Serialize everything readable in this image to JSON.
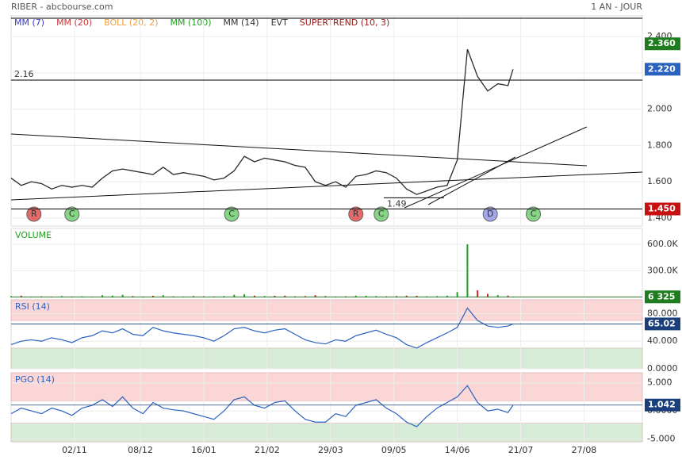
{
  "header": {
    "title": "RIBER - abcbourse.com",
    "period": "1 AN - JOUR"
  },
  "legend": [
    {
      "name": "MM (7)",
      "color": "#3a3ad0"
    },
    {
      "name": "MM (20)",
      "color": "#c83a3a"
    },
    {
      "name": "BOLL (20, 2)",
      "color": "#f0a040"
    },
    {
      "name": "MM (100)",
      "color": "#20a020"
    },
    {
      "name": "MM (14)",
      "color": "#333333"
    },
    {
      "name": "EVT",
      "color": "#333333"
    },
    {
      "name": "SUPERTREND (10, 3)",
      "color": "#a01818"
    }
  ],
  "chart_data": [
    {
      "type": "line",
      "title": "price",
      "x": [
        0,
        4,
        8,
        12,
        16,
        20,
        24,
        28,
        32,
        36,
        40,
        44,
        48,
        52,
        56,
        60,
        64,
        68,
        72,
        76,
        80,
        84,
        88,
        92,
        96,
        100,
        104,
        108,
        112,
        116,
        120,
        124,
        128,
        132,
        136,
        140,
        144,
        148,
        152,
        156,
        160,
        164,
        168,
        172,
        176,
        180,
        184,
        188,
        192,
        196,
        198
      ],
      "series": [
        {
          "name": "close",
          "color": "#2a2a2a",
          "values": [
            1.62,
            1.58,
            1.6,
            1.59,
            1.56,
            1.58,
            1.57,
            1.58,
            1.57,
            1.62,
            1.66,
            1.67,
            1.66,
            1.65,
            1.64,
            1.68,
            1.64,
            1.65,
            1.64,
            1.63,
            1.61,
            1.62,
            1.66,
            1.74,
            1.71,
            1.73,
            1.72,
            1.71,
            1.69,
            1.68,
            1.6,
            1.58,
            1.6,
            1.57,
            1.63,
            1.64,
            1.66,
            1.65,
            1.62,
            1.56,
            1.53,
            1.55,
            1.57,
            1.58,
            1.72,
            2.33,
            2.18,
            2.1,
            2.14,
            2.13,
            2.22
          ]
        }
      ],
      "xlim": [
        0,
        249
      ],
      "xticks": [
        {
          "value": 25,
          "label": "02/11"
        },
        {
          "value": 51,
          "label": "08/12"
        },
        {
          "value": 76,
          "label": "16/01"
        },
        {
          "value": 101,
          "label": "21/02"
        },
        {
          "value": 126,
          "label": "29/03"
        },
        {
          "value": 151,
          "label": "09/05"
        },
        {
          "value": 176,
          "label": "14/06"
        },
        {
          "value": 201,
          "label": "21/07"
        },
        {
          "value": 226,
          "label": "27/08"
        }
      ],
      "ylim": [
        1.356,
        2.514
      ],
      "yticks": [
        {
          "value": 1.4,
          "label": "1.400"
        },
        {
          "value": 1.6,
          "label": "1.600"
        },
        {
          "value": 1.8,
          "label": "1.800"
        },
        {
          "value": 2.0,
          "label": "2.000"
        },
        {
          "value": 2.2,
          "label": "2.200"
        },
        {
          "value": 2.4,
          "label": "2.400"
        }
      ],
      "annotations": [
        {
          "value": 2.16,
          "label": "2.16"
        },
        {
          "value": 1.49,
          "label": "1.49"
        }
      ],
      "markers": [
        {
          "value": 2.36,
          "label": "2.360",
          "color": "#1e7d1e"
        },
        {
          "value": 2.22,
          "label": "2.220",
          "color": "#2a62c0"
        },
        {
          "value": 1.45,
          "label": "1.450",
          "color": "#c81010"
        }
      ],
      "signals": [
        {
          "label": "R",
          "x": 9,
          "color": "#e46a6a"
        },
        {
          "label": "C",
          "x": 24,
          "color": "#86d486"
        },
        {
          "label": "C",
          "x": 87,
          "color": "#86d486"
        },
        {
          "label": "R",
          "x": 136,
          "color": "#e46a6a"
        },
        {
          "label": "C",
          "x": 146,
          "color": "#86d486"
        },
        {
          "label": "D",
          "x": 189,
          "color": "#a4a8e8"
        },
        {
          "label": "C",
          "x": 206,
          "color": "#86d486"
        }
      ]
    },
    {
      "type": "bar",
      "title": "VOLUME",
      "color": "#20a020",
      "values": [
        15000,
        20000,
        10000,
        12000,
        8000,
        15000,
        10000,
        12000,
        9000,
        25000,
        20000,
        30000,
        15000,
        10000,
        18000,
        25000,
        12000,
        10000,
        15000,
        12000,
        10000,
        15000,
        30000,
        35000,
        20000,
        15000,
        18000,
        20000,
        12000,
        15000,
        25000,
        15000,
        10000,
        12000,
        20000,
        18000,
        15000,
        12000,
        15000,
        20000,
        18000,
        12000,
        15000,
        20000,
        60000,
        600000,
        80000,
        40000,
        25000,
        20000,
        6325
      ],
      "ylim": [
        0,
        780000
      ],
      "yticks": [
        {
          "value": 300000,
          "label": "300.0K"
        },
        {
          "value": 600000,
          "label": "600.0K"
        }
      ],
      "markers": [
        {
          "value": 6325,
          "label": "6 325",
          "color": "#1e7d1e"
        }
      ]
    },
    {
      "type": "line",
      "title": "RSI (14)",
      "color": "#2a62c0",
      "values": [
        35,
        40,
        42,
        40,
        45,
        42,
        38,
        45,
        48,
        55,
        52,
        58,
        50,
        48,
        60,
        55,
        52,
        50,
        48,
        45,
        40,
        48,
        58,
        60,
        55,
        52,
        56,
        58,
        50,
        42,
        38,
        36,
        42,
        40,
        48,
        52,
        56,
        50,
        45,
        35,
        30,
        38,
        45,
        52,
        60,
        88,
        70,
        62,
        60,
        62,
        65.02
      ],
      "ylim": [
        0,
        100
      ],
      "yticks": [
        {
          "value": 0,
          "label": "0.0000"
        },
        {
          "value": 40,
          "label": "40.000"
        },
        {
          "value": 80,
          "label": "80.000"
        }
      ],
      "zones": [
        {
          "from": 70,
          "to": 100,
          "color": "#fbd6d6"
        },
        {
          "from": 0,
          "to": 30,
          "color": "#d6ecd6"
        }
      ],
      "markers": [
        {
          "value": 65.02,
          "label": "65.02",
          "color": "#1a3f7a"
        }
      ]
    },
    {
      "type": "line",
      "title": "PGO (14)",
      "color": "#2a62c0",
      "values": [
        -0.5,
        0.5,
        0,
        -0.5,
        0.5,
        0,
        -0.8,
        0.5,
        1,
        2,
        0.8,
        2.5,
        0.5,
        -0.5,
        1.5,
        0.5,
        0.2,
        0,
        -0.5,
        -1,
        -1.5,
        0,
        2,
        2.5,
        1,
        0.5,
        1.5,
        1.8,
        0,
        -1.5,
        -2,
        -2,
        -0.5,
        -1,
        1,
        1.5,
        2,
        0.5,
        -0.5,
        -2,
        -2.8,
        -1,
        0.5,
        1.5,
        2.5,
        4.5,
        1.5,
        0,
        0.3,
        -0.3,
        1.042
      ],
      "ylim": [
        -5.5,
        6.8
      ],
      "yticks": [
        {
          "value": -5,
          "label": "-5.000"
        },
        {
          "value": 0,
          "label": "0.0000"
        },
        {
          "value": 5,
          "label": "5.000"
        }
      ],
      "zones": [
        {
          "from": 1.8,
          "to": 6.8,
          "color": "#fbd6d6"
        },
        {
          "from": -5.5,
          "to": -2.2,
          "color": "#d6ecd6"
        }
      ],
      "markers": [
        {
          "value": 1.042,
          "label": "1.042",
          "color": "#1a3f7a"
        }
      ]
    }
  ]
}
